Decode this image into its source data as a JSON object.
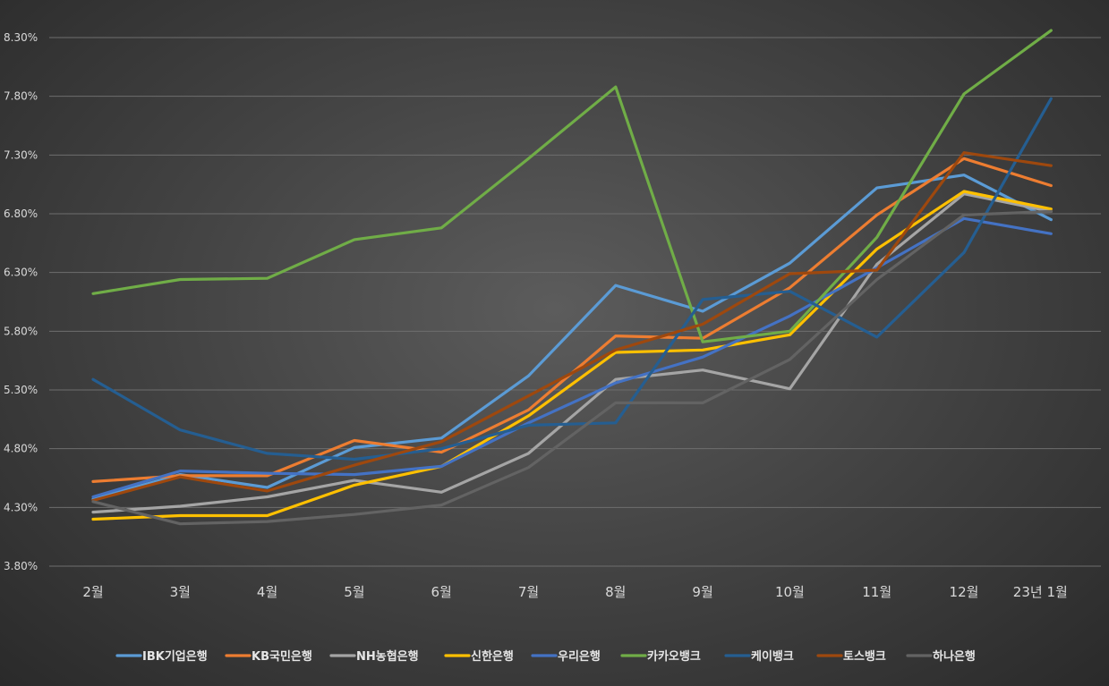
{
  "chart_data": {
    "type": "line",
    "title": "",
    "xlabel": "",
    "ylabel": "",
    "categories": [
      "2월",
      "3월",
      "4월",
      "5월",
      "6월",
      "7월",
      "8월",
      "9월",
      "10월",
      "11월",
      "12월",
      "23년 1월"
    ],
    "ylim": [
      3.8,
      8.3
    ],
    "yticks": [
      3.8,
      4.3,
      4.8,
      5.3,
      5.8,
      6.3,
      6.8,
      7.3,
      7.8,
      8.3
    ],
    "ytick_labels": [
      "3.80%",
      "4.30%",
      "4.80%",
      "5.30%",
      "5.80%",
      "6.30%",
      "6.80%",
      "7.30%",
      "7.80%",
      "8.30%"
    ],
    "grid": true,
    "legend_position": "bottom",
    "series": [
      {
        "name": "IBK기업은행",
        "color": "#5b9bd5",
        "values": [
          4.37,
          4.58,
          4.47,
          4.81,
          4.89,
          5.42,
          6.19,
          5.97,
          6.38,
          7.02,
          7.13,
          6.75
        ]
      },
      {
        "name": "KB국민은행",
        "color": "#ed7d31",
        "values": [
          4.52,
          4.57,
          4.57,
          4.87,
          4.77,
          5.13,
          5.76,
          5.74,
          6.17,
          6.79,
          7.27,
          7.04
        ]
      },
      {
        "name": "NH농협은행",
        "color": "#a5a5a5",
        "values": [
          4.26,
          4.31,
          4.39,
          4.53,
          4.43,
          4.76,
          5.39,
          5.47,
          5.31,
          6.37,
          6.97,
          6.82
        ]
      },
      {
        "name": "신한은행",
        "color": "#ffc000",
        "values": [
          4.2,
          4.23,
          4.23,
          4.49,
          4.65,
          5.08,
          5.62,
          5.64,
          5.77,
          6.5,
          6.99,
          6.84
        ]
      },
      {
        "name": "우리은행",
        "color": "#4472c4",
        "values": [
          4.39,
          4.61,
          4.59,
          4.58,
          4.65,
          5.02,
          5.36,
          5.58,
          5.93,
          6.34,
          6.76,
          6.63
        ]
      },
      {
        "name": "카카오뱅크",
        "color": "#70ad47",
        "values": [
          6.12,
          6.24,
          6.25,
          6.58,
          6.68,
          7.27,
          7.88,
          5.71,
          5.8,
          6.6,
          7.82,
          8.36
        ]
      },
      {
        "name": "케이뱅크",
        "color": "#255e91",
        "values": [
          5.39,
          4.96,
          4.76,
          4.71,
          4.8,
          5.0,
          5.02,
          6.07,
          6.14,
          5.75,
          6.47,
          7.78
        ]
      },
      {
        "name": "토스뱅크",
        "color": "#9e480e",
        "values": [
          4.36,
          4.56,
          4.44,
          4.66,
          4.86,
          5.25,
          5.64,
          5.86,
          6.29,
          6.32,
          7.32,
          7.21
        ]
      },
      {
        "name": "하나은행",
        "color": "#636363",
        "values": [
          4.35,
          4.16,
          4.18,
          4.24,
          4.32,
          4.64,
          5.19,
          5.19,
          5.56,
          6.24,
          6.79,
          6.82
        ]
      }
    ]
  }
}
